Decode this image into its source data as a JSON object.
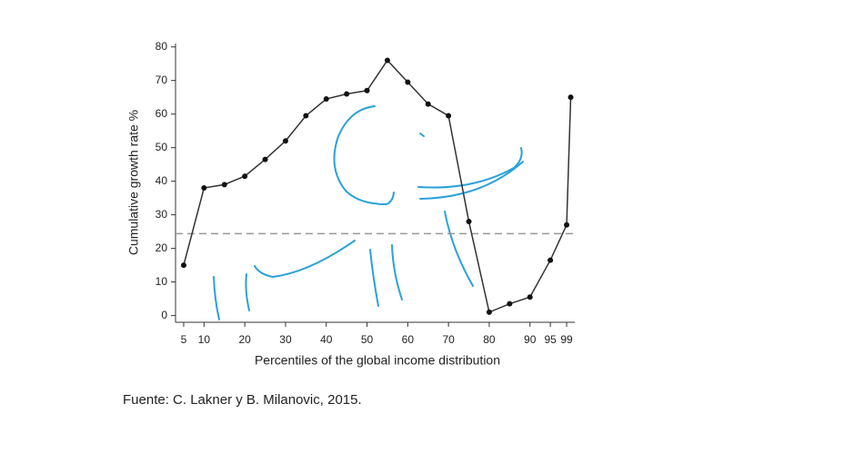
{
  "chart_data": {
    "type": "line",
    "x": [
      5,
      10,
      15,
      20,
      25,
      30,
      35,
      40,
      45,
      50,
      55,
      60,
      65,
      70,
      75,
      80,
      85,
      90,
      95,
      99,
      100
    ],
    "values": [
      15,
      38,
      39,
      41.5,
      46.5,
      52,
      59.5,
      64.5,
      66,
      67,
      76,
      69.5,
      63,
      59.5,
      28,
      1,
      3.5,
      5.5,
      16.5,
      27,
      65
    ],
    "color": "#333333",
    "xlim": [
      3,
      101
    ],
    "ylim": [
      -2,
      81
    ],
    "xticks": [
      5,
      10,
      20,
      30,
      40,
      50,
      60,
      70,
      80,
      90,
      95,
      99
    ],
    "yticks": [
      0,
      10,
      20,
      30,
      40,
      50,
      60,
      70,
      80
    ],
    "reference_line": 24.4,
    "x_label": "Percentiles of the global income distribution",
    "y_label": "Cumulative growth rate %",
    "source": "Fuente: C. Lakner y B. Milanovic, 2015."
  }
}
